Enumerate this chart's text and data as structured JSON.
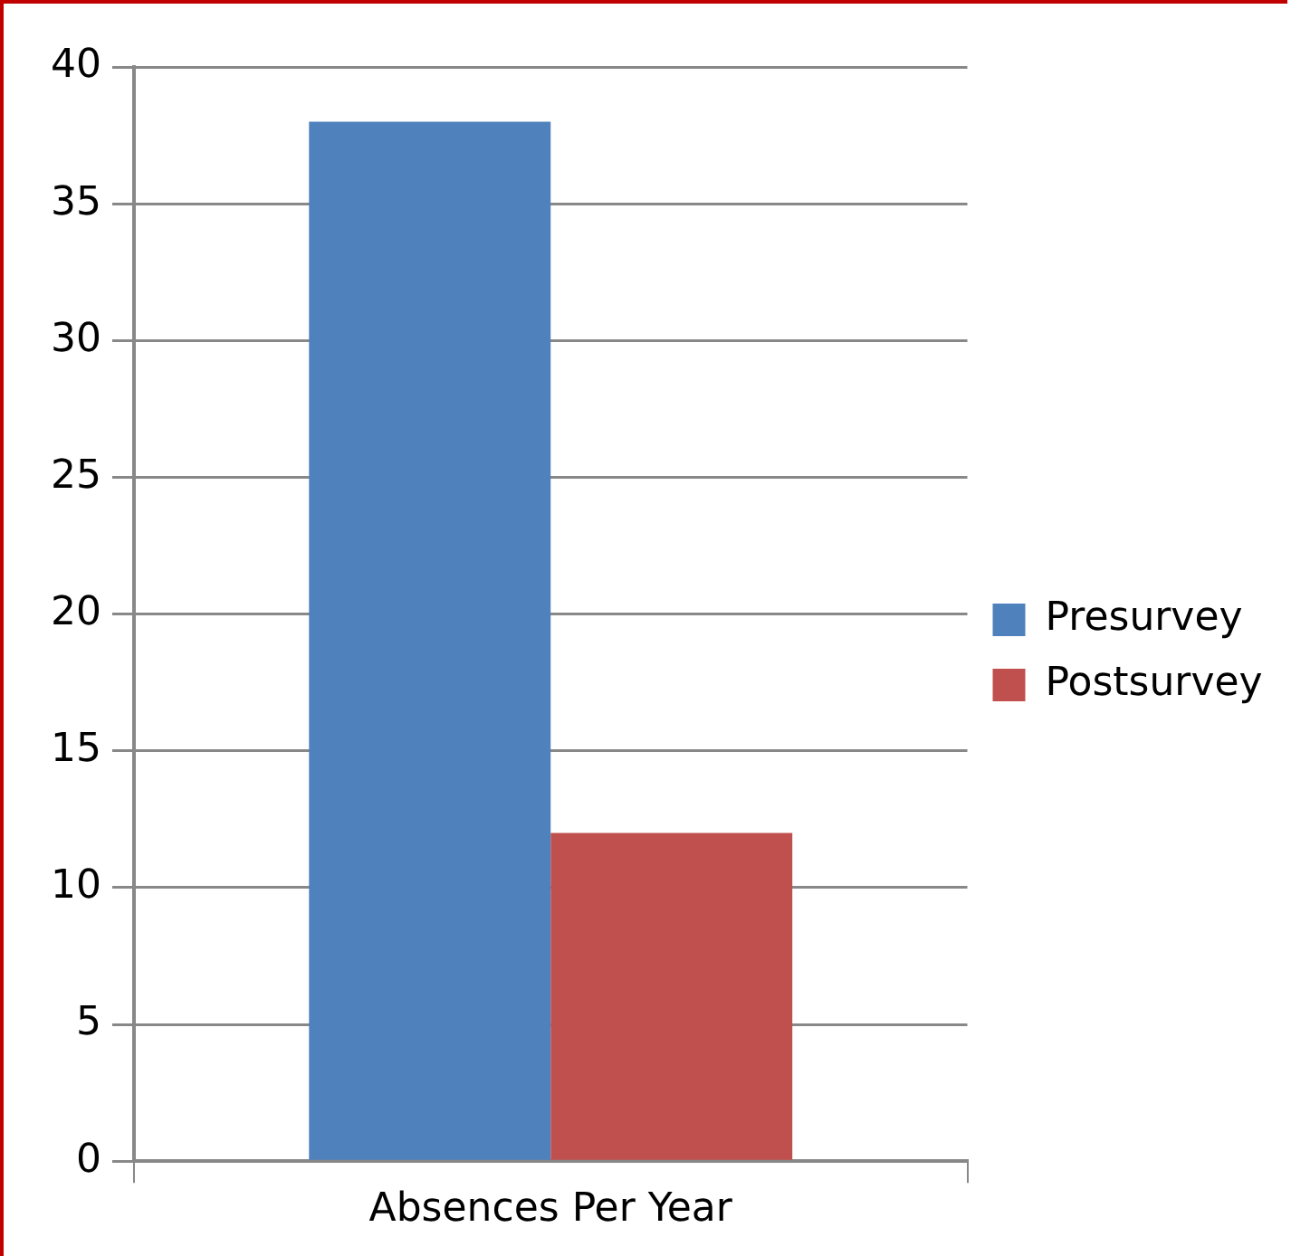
{
  "chart_data": {
    "type": "bar",
    "categories": [
      "Absences Per Year"
    ],
    "series": [
      {
        "name": "Presurvey",
        "color": "#4f81bd",
        "values": [
          38
        ]
      },
      {
        "name": "Postsurvey",
        "color": "#c0504d",
        "values": [
          12
        ]
      }
    ],
    "ylim": [
      0,
      40
    ],
    "yticks": [
      0,
      5,
      10,
      15,
      20,
      25,
      30,
      35,
      40
    ],
    "grid": "y",
    "legend": "right"
  }
}
